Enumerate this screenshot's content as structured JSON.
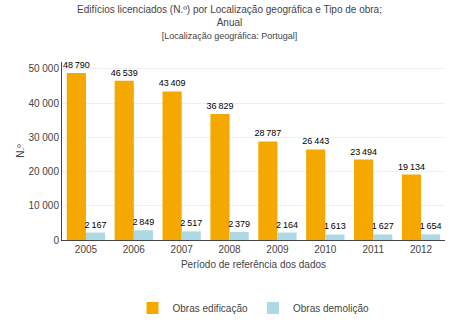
{
  "chart_data": {
    "type": "bar",
    "title": [
      "Edifícios licenciados (N.º) por Localização geográfica e Tipo de obra;",
      "Anual"
    ],
    "subtitle": "[Localização geográfica: Portugal]",
    "xlabel": "Período de referência dos dados",
    "ylabel": "N.º",
    "categories": [
      "2005",
      "2006",
      "2007",
      "2008",
      "2009",
      "2010",
      "2011",
      "2012"
    ],
    "series": [
      {
        "name": "Obras edificação",
        "color": "#F5A800",
        "values": [
          48790,
          46539,
          43409,
          36829,
          28787,
          26443,
          23494,
          19134
        ],
        "value_labels": [
          "48 790",
          "46 539",
          "43 409",
          "36 829",
          "28 787",
          "26 443",
          "23 494",
          "19 134"
        ]
      },
      {
        "name": "Obras demolição",
        "color": "#ADD8E6",
        "values": [
          2167,
          2849,
          2517,
          2379,
          2164,
          1613,
          1627,
          1654
        ],
        "value_labels": [
          "2 167",
          "2 849",
          "2 517",
          "2 379",
          "2 164",
          "1 613",
          "1 627",
          "1 654"
        ]
      }
    ],
    "ylim": [
      0,
      52000
    ],
    "yticks": [
      0,
      {
        "value": 10000,
        "label": "10 000"
      },
      {
        "value": 20000,
        "label": "20 000"
      },
      {
        "value": 30000,
        "label": "30 000"
      },
      {
        "value": 40000,
        "label": "40 000"
      },
      {
        "value": 50000,
        "label": "50 000"
      }
    ],
    "grid": true,
    "legend": "bottom",
    "data_labels": true
  }
}
